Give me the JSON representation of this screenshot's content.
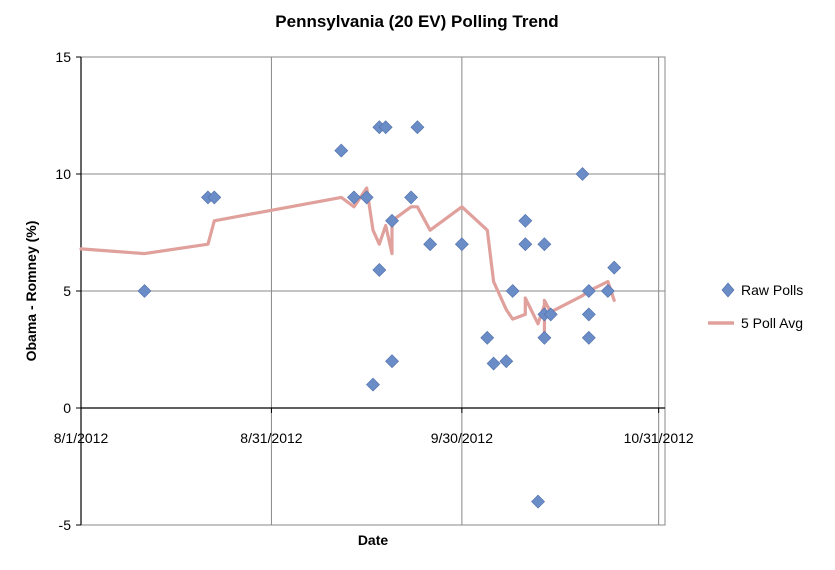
{
  "chart_data": {
    "type": "scatter",
    "title": "Pennsylvania (20 EV) Polling Trend",
    "xlabel": "Date",
    "ylabel": "Obama - Romney (%)",
    "x_axis_type": "date",
    "xlim": [
      "2012-08-01",
      "2012-11-01"
    ],
    "ylim": [
      -5,
      15
    ],
    "x_ticks": [
      "2012-08-01",
      "2012-08-31",
      "2012-09-30",
      "2012-10-31"
    ],
    "x_tick_labels": [
      "8/1/2012",
      "8/31/2012",
      "9/30/2012",
      "10/31/2012"
    ],
    "y_ticks": [
      -5,
      0,
      5,
      10,
      15
    ],
    "y_tick_labels": [
      "-5",
      "0",
      "5",
      "10",
      "15"
    ],
    "grid": true,
    "legend_position": "right",
    "series": [
      {
        "name": "Raw Polls",
        "type": "scatter",
        "color": "#6a8cc7",
        "marker": "diamond",
        "points": [
          {
            "x": "2012-08-11",
            "y": 5
          },
          {
            "x": "2012-08-21",
            "y": 9
          },
          {
            "x": "2012-08-22",
            "y": 9
          },
          {
            "x": "2012-09-11",
            "y": 11
          },
          {
            "x": "2012-09-13",
            "y": 9
          },
          {
            "x": "2012-09-15",
            "y": 9
          },
          {
            "x": "2012-09-16",
            "y": 1
          },
          {
            "x": "2012-09-17",
            "y": 12
          },
          {
            "x": "2012-09-17",
            "y": 5.9
          },
          {
            "x": "2012-09-18",
            "y": 12
          },
          {
            "x": "2012-09-19",
            "y": 8
          },
          {
            "x": "2012-09-19",
            "y": 2
          },
          {
            "x": "2012-09-22",
            "y": 9
          },
          {
            "x": "2012-09-23",
            "y": 12
          },
          {
            "x": "2012-09-25",
            "y": 7
          },
          {
            "x": "2012-09-30",
            "y": 7
          },
          {
            "x": "2012-10-04",
            "y": 3
          },
          {
            "x": "2012-10-05",
            "y": 1.9
          },
          {
            "x": "2012-10-07",
            "y": 2
          },
          {
            "x": "2012-10-08",
            "y": 5
          },
          {
            "x": "2012-10-10",
            "y": 8
          },
          {
            "x": "2012-10-10",
            "y": 7
          },
          {
            "x": "2012-10-12",
            "y": -4
          },
          {
            "x": "2012-10-13",
            "y": 7
          },
          {
            "x": "2012-10-13",
            "y": 4
          },
          {
            "x": "2012-10-13",
            "y": 3
          },
          {
            "x": "2012-10-14",
            "y": 4
          },
          {
            "x": "2012-10-19",
            "y": 10
          },
          {
            "x": "2012-10-20",
            "y": 5
          },
          {
            "x": "2012-10-20",
            "y": 4
          },
          {
            "x": "2012-10-20",
            "y": 3
          },
          {
            "x": "2012-10-23",
            "y": 5
          },
          {
            "x": "2012-10-24",
            "y": 6
          }
        ]
      },
      {
        "name": "5 Poll Avg",
        "type": "line",
        "color": "#e0a09c",
        "points": [
          {
            "x": "2012-08-01",
            "y": 6.8
          },
          {
            "x": "2012-08-11",
            "y": 6.6
          },
          {
            "x": "2012-08-21",
            "y": 7.0
          },
          {
            "x": "2012-08-22",
            "y": 8.0
          },
          {
            "x": "2012-09-11",
            "y": 9.0
          },
          {
            "x": "2012-09-13",
            "y": 8.6
          },
          {
            "x": "2012-09-15",
            "y": 9.4
          },
          {
            "x": "2012-09-16",
            "y": 7.6
          },
          {
            "x": "2012-09-17",
            "y": 7.0
          },
          {
            "x": "2012-09-18",
            "y": 7.8
          },
          {
            "x": "2012-09-19",
            "y": 6.6
          },
          {
            "x": "2012-09-19",
            "y": 8.0
          },
          {
            "x": "2012-09-22",
            "y": 8.6
          },
          {
            "x": "2012-09-23",
            "y": 8.6
          },
          {
            "x": "2012-09-25",
            "y": 7.6
          },
          {
            "x": "2012-09-30",
            "y": 8.6
          },
          {
            "x": "2012-10-04",
            "y": 7.6
          },
          {
            "x": "2012-10-05",
            "y": 5.4
          },
          {
            "x": "2012-10-07",
            "y": 4.2
          },
          {
            "x": "2012-10-08",
            "y": 3.8
          },
          {
            "x": "2012-10-10",
            "y": 4.0
          },
          {
            "x": "2012-10-10",
            "y": 4.7
          },
          {
            "x": "2012-10-12",
            "y": 3.6
          },
          {
            "x": "2012-10-13",
            "y": 4.4
          },
          {
            "x": "2012-10-13",
            "y": 3.2
          },
          {
            "x": "2012-10-13",
            "y": 4.6
          },
          {
            "x": "2012-10-14",
            "y": 4.1
          },
          {
            "x": "2012-10-19",
            "y": 4.8
          },
          {
            "x": "2012-10-20",
            "y": 5.0
          },
          {
            "x": "2012-10-23",
            "y": 5.4
          },
          {
            "x": "2012-10-24",
            "y": 4.6
          }
        ]
      }
    ]
  }
}
